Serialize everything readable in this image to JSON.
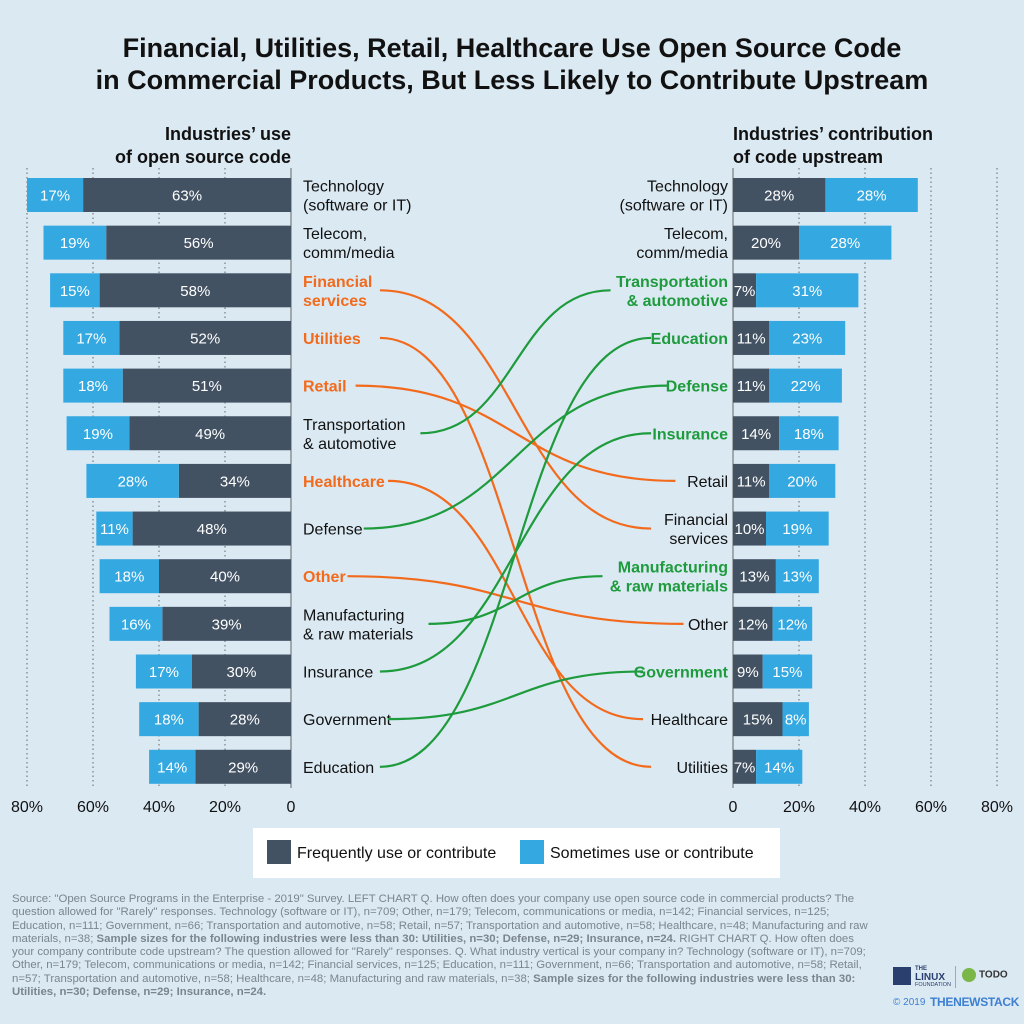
{
  "title": "Financial, Utilities, Retail, Healthcare Use Open Source Code\nin Commercial Products, But Less Likely to Contribute Upstream",
  "colors": {
    "frequent": "#435263",
    "sometimes": "#34a8e0",
    "orange": "#f26b1d",
    "green": "#1e9b3c",
    "grid": "#666666"
  },
  "chart_data": [
    {
      "type": "bar",
      "orientation": "horizontal-reversed",
      "title": "Industries’ use\nof open source code",
      "xlim": [
        0,
        80
      ],
      "ticks": [
        "80%",
        "60%",
        "40%",
        "20%",
        "0"
      ],
      "categories": [
        "Technology\n(software or IT)",
        "Telecom,\ncomm/media",
        "Financial\nservices",
        "Utilities",
        "Retail",
        "Transportation\n& automotive",
        "Healthcare",
        "Defense",
        "Other",
        "Manufacturing\n& raw materials",
        "Insurance",
        "Government",
        "Education"
      ],
      "series": [
        {
          "name": "Frequently use or contribute",
          "values": [
            63,
            56,
            58,
            52,
            51,
            49,
            34,
            48,
            40,
            39,
            30,
            28,
            29
          ],
          "labels": [
            "63%",
            "56%",
            "58%",
            "52%",
            "51%",
            "49%",
            "34%",
            "48%",
            "40%",
            "39%",
            "30%",
            "28%",
            "29%"
          ]
        },
        {
          "name": "Sometimes use or contribute",
          "values": [
            17,
            19,
            15,
            17,
            18,
            19,
            28,
            11,
            18,
            16,
            17,
            18,
            14
          ],
          "labels": [
            "17%",
            "19%",
            "15%",
            "17%",
            "18%",
            "19%",
            "28%",
            "11%",
            "18%",
            "16%",
            "17%",
            "18%",
            "14%"
          ]
        }
      ]
    },
    {
      "type": "bar",
      "orientation": "horizontal",
      "title": "Industries’ contribution\nof code upstream",
      "xlim": [
        0,
        80
      ],
      "ticks": [
        "0",
        "20%",
        "40%",
        "60%",
        "80%"
      ],
      "categories": [
        "Technology\n(software or IT)",
        "Telecom,\ncomm/media",
        "Transportation\n& automotive",
        "Education",
        "Defense",
        "Insurance",
        "Retail",
        "Financial\nservices",
        "Manufacturing\n& raw materials",
        "Other",
        "Government",
        "Healthcare",
        "Utilities"
      ],
      "series": [
        {
          "name": "Frequently use or contribute",
          "values": [
            28,
            20,
            7,
            11,
            11,
            14,
            11,
            10,
            13,
            12,
            9,
            15,
            7
          ],
          "labels": [
            "28%",
            "20%",
            "7%",
            "11%",
            "11%",
            "14%",
            "11%",
            "10%",
            "13%",
            "12%",
            "9%",
            "15%",
            "7%"
          ]
        },
        {
          "name": "Sometimes use or contribute",
          "values": [
            28,
            28,
            31,
            23,
            22,
            18,
            20,
            19,
            13,
            12,
            15,
            8,
            14
          ],
          "labels": [
            "28%",
            "28%",
            "31%",
            "23%",
            "22%",
            "18%",
            "20%",
            "19%",
            "13%",
            "12%",
            "15%",
            "8%",
            "14%"
          ]
        }
      ]
    }
  ],
  "left_highlight": [
    "Financial\nservices",
    "Utilities",
    "Retail",
    "Healthcare",
    "Other"
  ],
  "right_highlight": [
    "Transportation\n& automotive",
    "Education",
    "Defense",
    "Insurance",
    "Manufacturing\n& raw materials",
    "Government"
  ],
  "legend": {
    "frequent": "Frequently use or contribute",
    "sometimes": "Sometimes use or contribute"
  },
  "source": {
    "parts": [
      {
        "text": "Source: \"Open Source Programs in the Enterprise - 2019\" Survey. LEFT CHART Q. How often does your company use open source code in commercial products? The question allowed for \"Rarely\" responses. Technology (software or IT), n=709; Other, n=179; Telecom, communications or media, n=142; Financial services, n=125; Education, n=111; Government, n=66; Transportation and automotive, n=58; Retail, n=57; Transportation and automotive, n=58; Healthcare, n=48; Manufacturing and raw materials, n=38; ",
        "bold": false
      },
      {
        "text": "Sample sizes for the following industries were less than 30: Utilities, n=30; Defense, n=29; Insurance, n=24.",
        "bold": true
      },
      {
        "text": " RIGHT CHART Q. How often does your company contribute code upstream? The question allowed for \"Rarely\" responses. Q. What industry vertical is your company in? Technology (software or IT), n=709; Other, n=179; Telecom, communications or media, n=142; Financial services, n=125; Education, n=111; Government, n=66; Transportation and automotive, n=58; Retail, n=57; Transportation and automotive, n=58; Healthcare, n=48; Manufacturing and raw materials, n=38; ",
        "bold": false
      },
      {
        "text": "Sample sizes for the following industries were less than 30: Utilities, n=30; Defense, n=29; Insurance, n=24.",
        "bold": true
      }
    ]
  },
  "logos": {
    "lf_small": "THE",
    "lf_main": "LINUX",
    "lf_sub": "FOUNDATION",
    "todo": "TODO",
    "copyright": "© 2019",
    "newstack": "THENEWSTACK"
  }
}
